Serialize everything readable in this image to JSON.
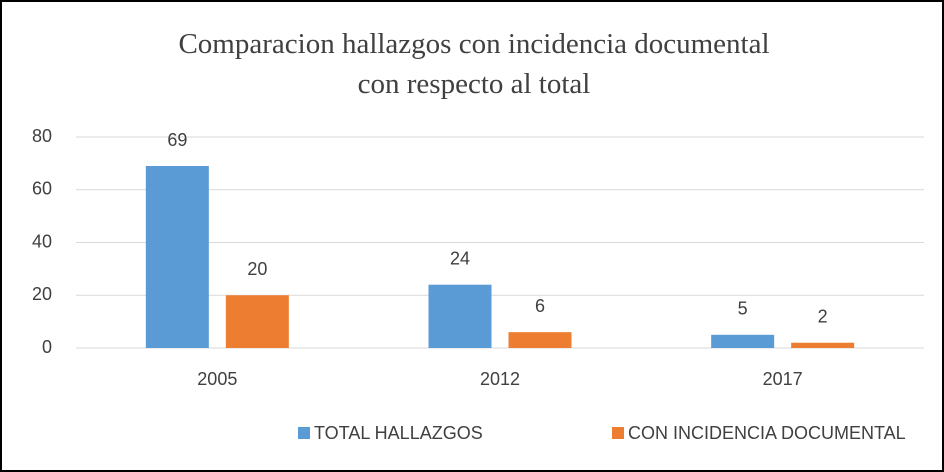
{
  "chart_data": {
    "type": "bar",
    "title": "Comparacion hallazgos con incidencia documental con respecto al total",
    "categories": [
      "2005",
      "2012",
      "2017"
    ],
    "series": [
      {
        "name": "TOTAL HALLAZGOS",
        "color": "#5b9bd5",
        "values": [
          69,
          24,
          5
        ]
      },
      {
        "name": "CON INCIDENCIA DOCUMENTAL",
        "color": "#ed7d31",
        "values": [
          20,
          6,
          2
        ]
      }
    ],
    "ylim": [
      0,
      80
    ],
    "yticks": [
      0,
      20,
      40,
      60,
      80
    ],
    "grid": true,
    "legend": "bottom"
  }
}
